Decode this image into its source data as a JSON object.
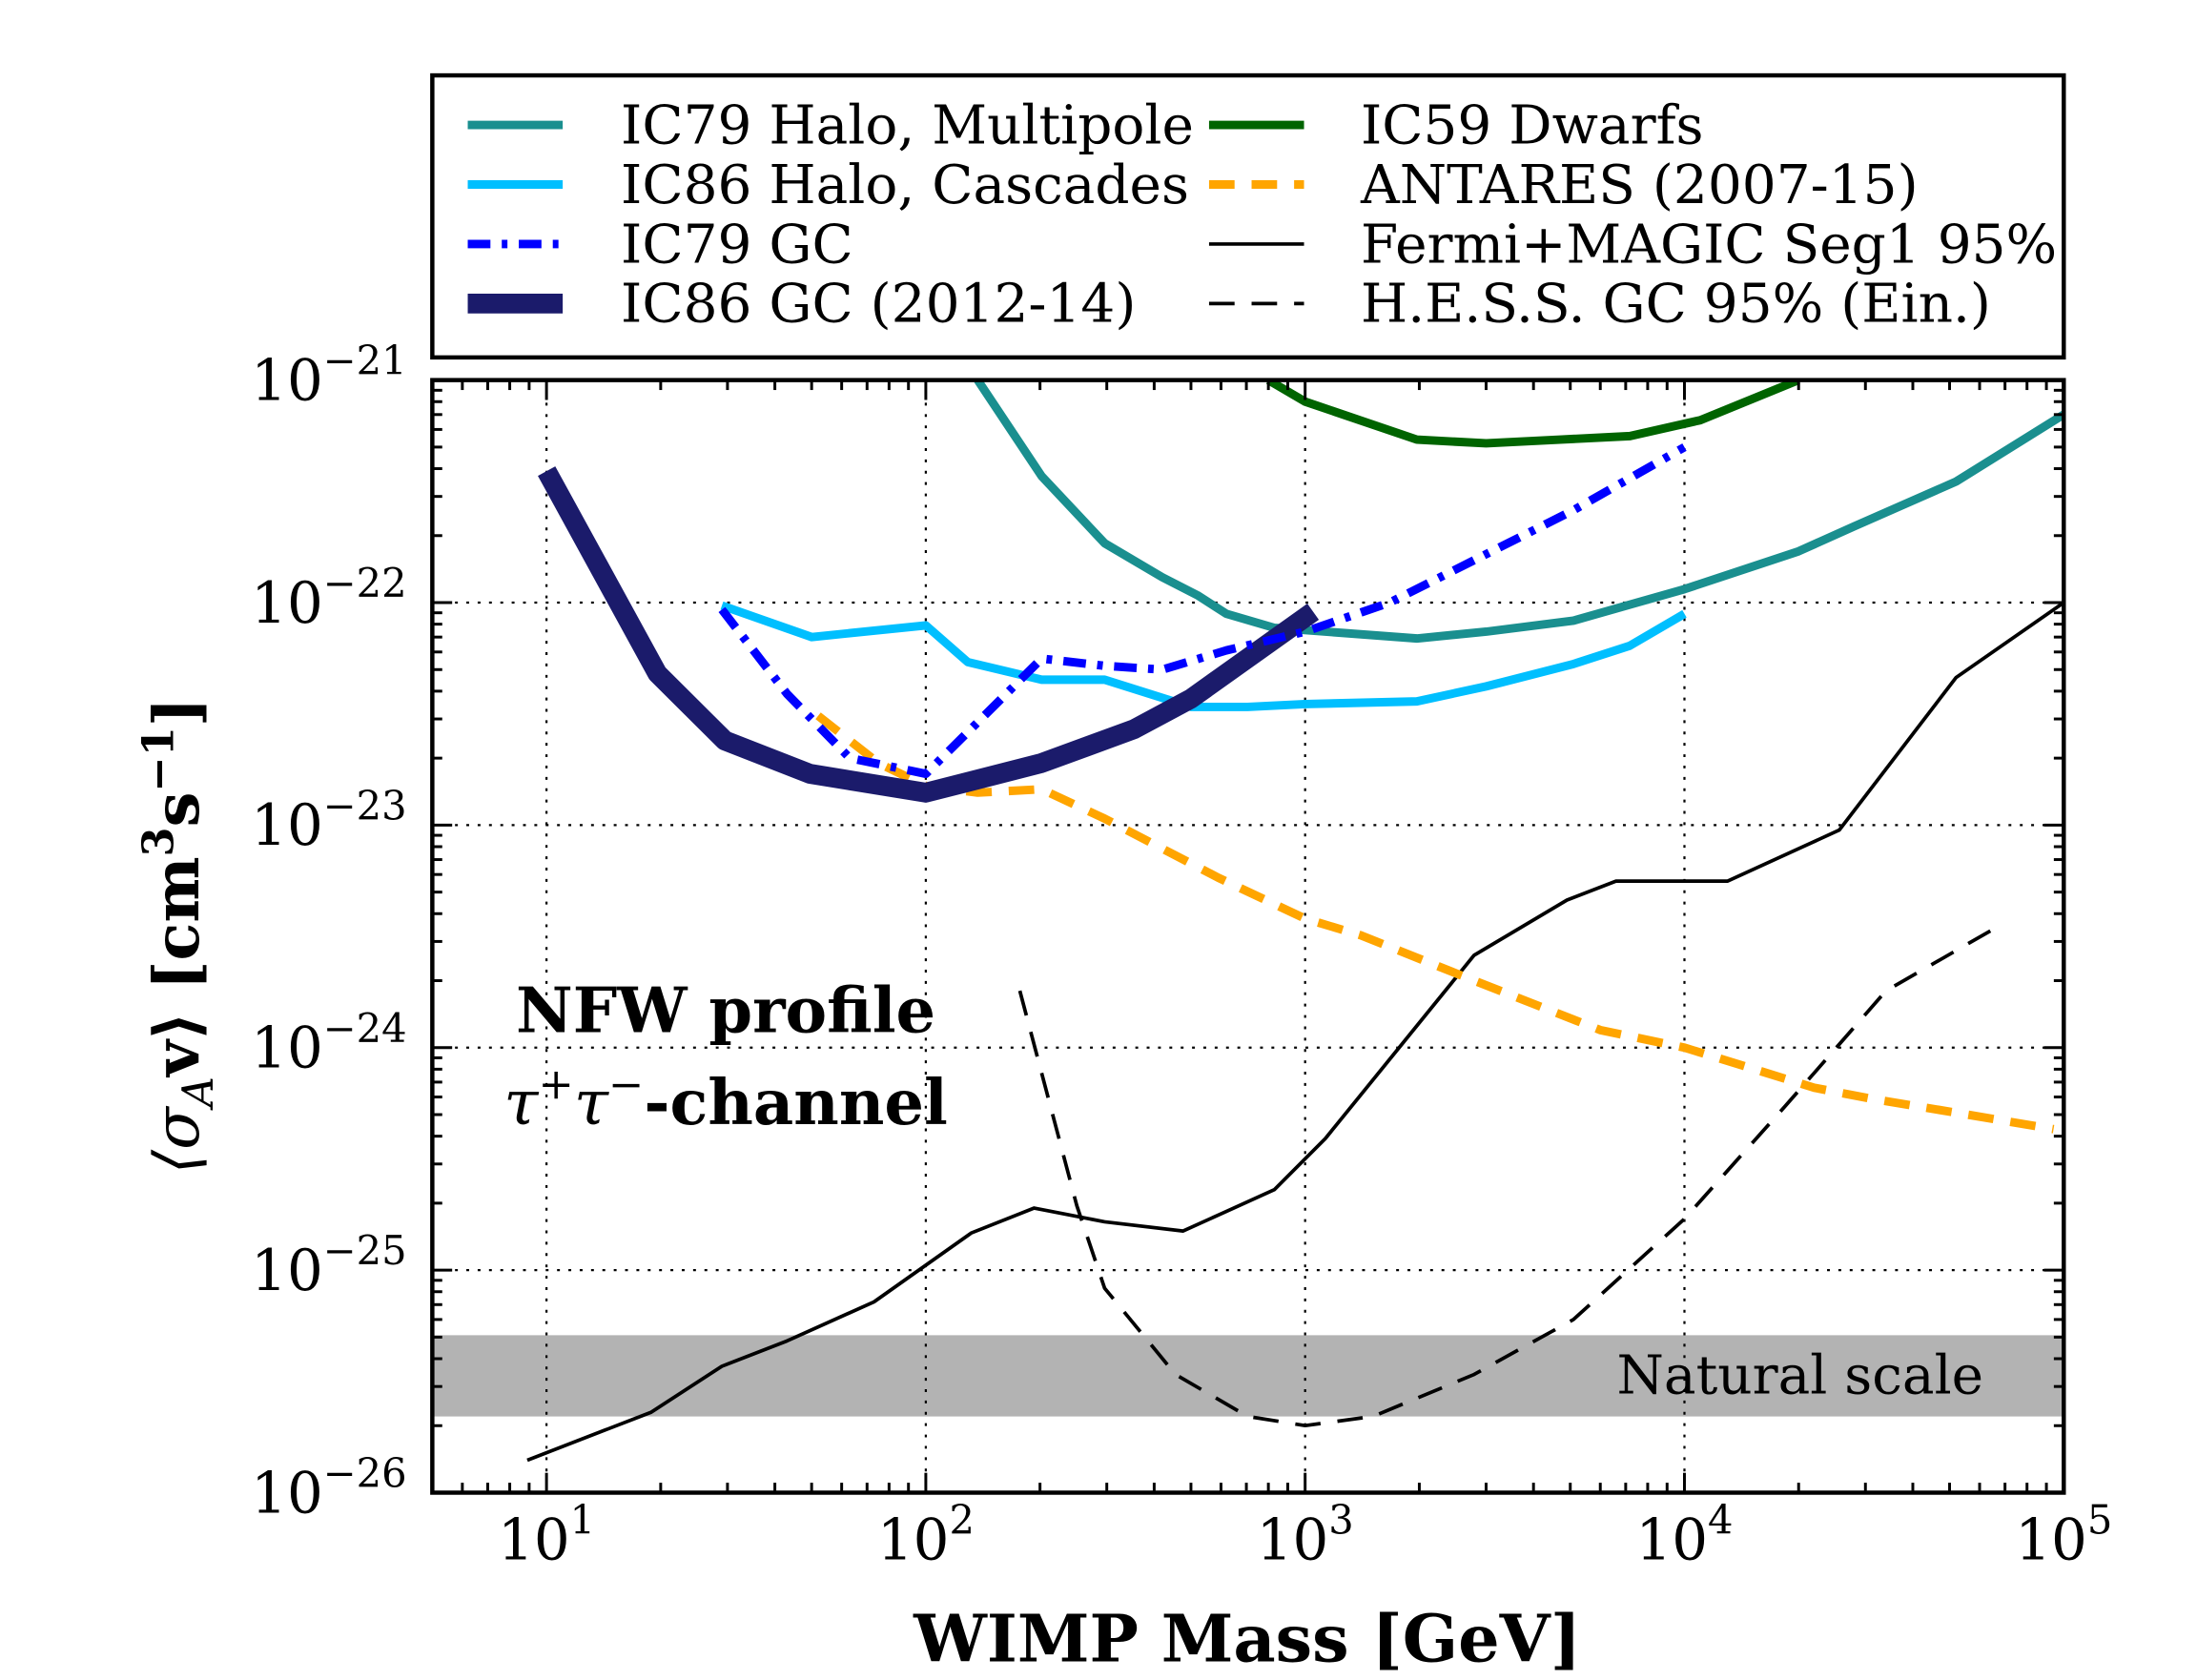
{
  "chart_data": {
    "type": "line",
    "xlabel": "WIMP Mass [GeV]",
    "ylabel": "⟨σ_A v⟩ [cm³s⁻¹]",
    "ylabel_main": "⟨σ",
    "ylabel_sub": "A",
    "ylabel_v": "v⟩ [cm",
    "ylabel_sup1": "3",
    "ylabel_s": "s",
    "ylabel_sup2": "−1",
    "ylabel_end": "]",
    "x_scale": "log",
    "y_scale": "log",
    "xlim": [
      5,
      100000
    ],
    "ylim": [
      1e-26,
      1e-21
    ],
    "grid": true,
    "legend_placement": "top (above plot)",
    "xticks": [
      {
        "value": 10,
        "base": "10",
        "exp": "1"
      },
      {
        "value": 100,
        "base": "10",
        "exp": "2"
      },
      {
        "value": 1000,
        "base": "10",
        "exp": "3"
      },
      {
        "value": 10000,
        "base": "10",
        "exp": "4"
      },
      {
        "value": 100000,
        "base": "10",
        "exp": "5"
      }
    ],
    "yticks": [
      {
        "value": 1e-21,
        "base": "10",
        "exp": "−21"
      },
      {
        "value": 1e-22,
        "base": "10",
        "exp": "−22"
      },
      {
        "value": 1e-23,
        "base": "10",
        "exp": "−23"
      },
      {
        "value": 1e-24,
        "base": "10",
        "exp": "−24"
      },
      {
        "value": 1e-25,
        "base": "10",
        "exp": "−25"
      },
      {
        "value": 1e-26,
        "base": "10",
        "exp": "−26"
      }
    ],
    "annotations": {
      "profile": "NFW profile",
      "channel": "-channel",
      "channel_tau": "τ",
      "channel_plus": "+",
      "channel_minus": "−"
    },
    "band": {
      "name": "Natural scale",
      "ymin": 2.2e-26,
      "ymax": 5.1e-26,
      "color": "#b3b3b3"
    },
    "series": [
      {
        "name": "IC79 Halo, Multipole",
        "color": "#1a8f8f",
        "style": "solid",
        "width": 6,
        "x": [
          137,
          202,
          296,
          420,
          520,
          620,
          830,
          1970,
          3000,
          5100,
          10000,
          20000,
          28000,
          52000,
          100000
        ],
        "y": [
          1e-21,
          3.7e-22,
          1.85e-22,
          1.3e-22,
          1.08e-22,
          8.9e-23,
          7.7e-23,
          6.9e-23,
          7.4e-23,
          8.3e-23,
          1.15e-22,
          1.7e-22,
          2.2e-22,
          3.5e-22,
          7e-22
        ]
      },
      {
        "name": "IC86 Halo, Cascades",
        "color": "#00bfff",
        "style": "solid",
        "width": 6,
        "x": [
          29,
          50,
          100,
          129,
          202,
          296,
          500,
          705,
          1000,
          1970,
          3000,
          5100,
          7180,
          10000
        ],
        "y": [
          9.7e-23,
          7e-23,
          7.9e-23,
          5.4e-23,
          4.5e-23,
          4.5e-23,
          3.4e-23,
          3.4e-23,
          3.5e-23,
          3.6e-23,
          4.2e-23,
          5.3e-23,
          6.4e-23,
          8.9e-23
        ]
      },
      {
        "name": "IC79 GC",
        "color": "#0000ff",
        "style": "dashdot",
        "width": 6,
        "x": [
          29,
          43,
          63,
          100,
          137,
          202,
          296,
          420,
          620,
          1000,
          1670,
          2790,
          5100,
          10000
        ],
        "y": [
          9.3e-23,
          3.9e-23,
          2e-23,
          1.7e-23,
          2.9e-23,
          5.6e-23,
          5.2e-23,
          5e-23,
          6.1e-23,
          7.4e-23,
          1e-22,
          1.55e-22,
          2.6e-22,
          5e-22
        ]
      },
      {
        "name": "IC86 GC (2012-14)",
        "color": "#1b1b6b",
        "style": "solid",
        "width": 14,
        "x": [
          10,
          19.6,
          29.5,
          49.5,
          100,
          202,
          354,
          500,
          1050
        ],
        "y": [
          3.9e-22,
          4.8e-23,
          2.4e-23,
          1.7e-23,
          1.4e-23,
          1.9e-23,
          2.7e-23,
          3.7e-23,
          9.1e-23
        ]
      },
      {
        "name": "IC59 Dwarfs",
        "color": "#006400",
        "style": "solid",
        "width": 6,
        "x": [
          800,
          1000,
          1970,
          3000,
          4700,
          7180,
          11000,
          20000
        ],
        "y": [
          1e-21,
          8e-22,
          5.4e-22,
          5.2e-22,
          5.4e-22,
          5.6e-22,
          6.6e-22,
          1e-21
        ]
      },
      {
        "name": "ANTARES (2007-15)",
        "color": "#ffa500",
        "style": "dashed",
        "width": 6,
        "x": [
          52,
          75,
          100,
          137,
          202,
          296,
          590,
          1000,
          1400,
          2790,
          6000,
          10000,
          22000,
          31000,
          52000,
          94000
        ],
        "y": [
          3.1e-23,
          1.9e-23,
          1.5e-23,
          1.4e-23,
          1.45e-23,
          1.07e-23,
          5.8e-24,
          3.8e-24,
          3.2e-24,
          2e-24,
          1.2e-24,
          1e-24,
          6.6e-25,
          5.9e-25,
          5.1e-25,
          4.3e-25
        ]
      },
      {
        "name": "Fermi+MAGIC Seg1 95%",
        "color": "#000000",
        "style": "solid",
        "width": 2.5,
        "x": [
          8.9,
          18.9,
          29,
          43,
          73,
          132,
          193,
          296,
          477,
          830,
          1130,
          2790,
          4900,
          6600,
          13000,
          25600,
          52000,
          100000
        ],
        "y": [
          1.4e-26,
          2.3e-26,
          3.7e-26,
          4.8e-26,
          7.2e-26,
          1.47e-25,
          1.9e-25,
          1.65e-25,
          1.5e-25,
          2.3e-25,
          3.9e-25,
          2.6e-24,
          4.6e-24,
          5.6e-24,
          5.6e-24,
          9.5e-24,
          4.6e-23,
          1e-22
        ]
      },
      {
        "name": "H.E.S.S. GC 95% (Ein.)",
        "color": "#000000",
        "style": "dashed",
        "width": 2.5,
        "x": [
          177,
          250,
          296,
          455,
          705,
          1000,
          1510,
          2790,
          5100,
          10000,
          18500,
          34000,
          67000
        ],
        "y": [
          1.8e-24,
          1.95e-25,
          8.3e-26,
          3.4e-26,
          2.2e-26,
          2e-26,
          2.2e-26,
          3.4e-26,
          6e-26,
          1.7e-25,
          5.5e-25,
          1.8e-24,
          3.5e-24
        ]
      }
    ]
  }
}
